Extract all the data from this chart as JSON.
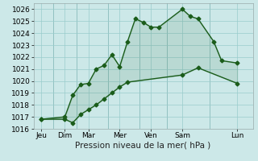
{
  "xlabel": "Pression niveau de la mer( hPa )",
  "background_color": "#cce8e8",
  "plot_bg_color": "#cce8e8",
  "grid_color": "#99cccc",
  "line_color": "#1a5c1a",
  "ylim": [
    1016,
    1026.5
  ],
  "xlim": [
    0,
    14
  ],
  "xtick_positions": [
    0.5,
    2.0,
    3.5,
    5.5,
    7.5,
    9.5,
    13.0
  ],
  "xtick_labels": [
    "Jeu",
    "Dim",
    "Mar",
    "Mer",
    "Ven",
    "Sam",
    "Lun"
  ],
  "ytick_positions": [
    1016,
    1017,
    1018,
    1019,
    1020,
    1021,
    1022,
    1023,
    1024,
    1025,
    1026
  ],
  "vlines": [
    1.25,
    2.75,
    4.75,
    6.75,
    8.5,
    11.25
  ],
  "series1_x": [
    0.5,
    2.0,
    2.5,
    3.0,
    3.5,
    4.0,
    4.5,
    5.0,
    5.5,
    6.0,
    6.5,
    7.0,
    7.5,
    8.0,
    9.5,
    10.0,
    10.5,
    11.5,
    12.0,
    13.0
  ],
  "series1_y": [
    1016.8,
    1017.0,
    1018.8,
    1019.7,
    1019.8,
    1021.0,
    1021.3,
    1022.2,
    1021.2,
    1023.3,
    1025.2,
    1024.9,
    1024.5,
    1024.5,
    1026.0,
    1025.4,
    1025.2,
    1023.3,
    1021.7,
    1021.5
  ],
  "series2_x": [
    0.5,
    2.0,
    2.5,
    3.0,
    3.5,
    4.0,
    4.5,
    5.0,
    5.5,
    6.0,
    9.5,
    10.5,
    13.0
  ],
  "series2_y": [
    1016.8,
    1016.8,
    1016.5,
    1017.2,
    1017.6,
    1018.0,
    1018.5,
    1019.0,
    1019.5,
    1019.9,
    1020.5,
    1021.1,
    1019.8
  ],
  "marker_size": 2.5,
  "line_width": 1.0,
  "font_size_ticks": 6.5,
  "font_size_xlabel": 7.5
}
